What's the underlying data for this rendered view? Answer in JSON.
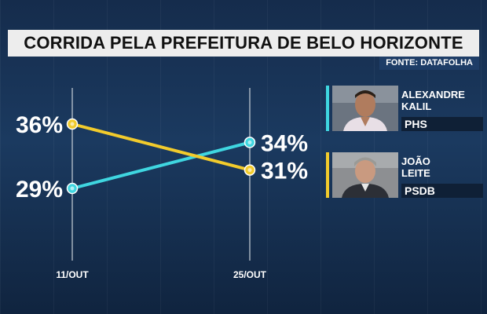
{
  "title": "CORRIDA PELA PREFEITURA DE BELO HORIZONTE",
  "source": "FONTE: DATAFOLHA",
  "colors": {
    "kalil": "#3fd6e0",
    "leite": "#f2cb2c"
  },
  "candidates": [
    {
      "name": "ALEXANDRE\nKALIL",
      "party": "PHS",
      "color": "#3fd6e0"
    },
    {
      "name": "JOÃO\nLEITE",
      "party": "PSDB",
      "color": "#f2cb2c"
    }
  ],
  "chart_data": {
    "type": "line",
    "categories": [
      "11/OUT",
      "25/OUT"
    ],
    "series": [
      {
        "name": "ALEXANDRE KALIL",
        "values": [
          29,
          34
        ],
        "labels": [
          "29%",
          "34%"
        ],
        "color": "#3fd6e0"
      },
      {
        "name": "JOÃO LEITE",
        "values": [
          36,
          31
        ],
        "labels": [
          "36%",
          "31%"
        ],
        "color": "#f2cb2c"
      }
    ],
    "ylim": [
      27,
      38
    ],
    "title": "CORRIDA PELA PREFEITURA DE BELO HORIZONTE",
    "xlabel": "",
    "ylabel": ""
  }
}
